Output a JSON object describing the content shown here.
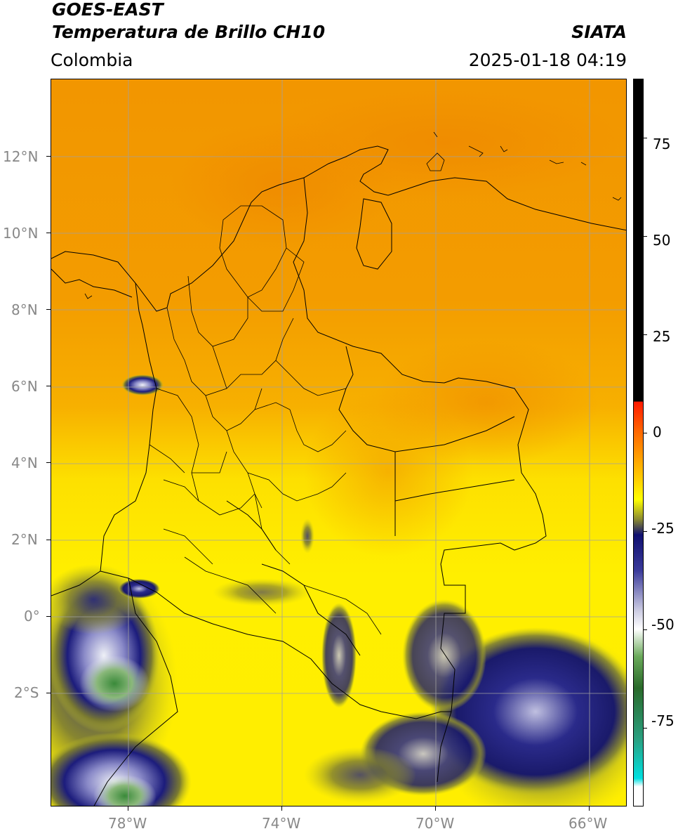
{
  "header": {
    "satellite": "GOES-EAST",
    "product": "Temperatura de Brillo CH10",
    "region": "Colombia",
    "source": "SIATA",
    "datetime": "2025-01-18 04:19"
  },
  "map": {
    "lat_labels": [
      "12°N",
      "10°N",
      "8°N",
      "6°N",
      "4°N",
      "2°N",
      "0°",
      "2°S"
    ],
    "lon_labels": [
      "78°W",
      "74°W",
      "70°W",
      "66°W"
    ],
    "colors": {
      "warm_orange": "#f29a00",
      "mid_orange": "#f7b400",
      "yellow": "#ffee00",
      "olive": "#9a9a2a",
      "navy": "#1a1a7a",
      "white_cloud": "#e6e6f0",
      "green_cloud": "#3f8a3a",
      "border_line": "#000000",
      "grid_line": "#a0a0a0"
    }
  },
  "colorbar": {
    "labels": [
      "75",
      "50",
      "25",
      "0",
      "-25",
      "-50",
      "-75"
    ],
    "range": [
      -95,
      90
    ],
    "stops": [
      {
        "value": 90,
        "color": "#000000"
      },
      {
        "value": 8,
        "color": "#000000"
      },
      {
        "value": 7.9,
        "color": "#ff1a00"
      },
      {
        "value": 0,
        "color": "#ff6a00"
      },
      {
        "value": -12,
        "color": "#ffd000"
      },
      {
        "value": -17,
        "color": "#ffff00"
      },
      {
        "value": -22,
        "color": "#8c8c30"
      },
      {
        "value": -26,
        "color": "#101070"
      },
      {
        "value": -35,
        "color": "#3a3a9a"
      },
      {
        "value": -45,
        "color": "#c8c8e0"
      },
      {
        "value": -50,
        "color": "#ffffff"
      },
      {
        "value": -57,
        "color": "#6aaa5a"
      },
      {
        "value": -65,
        "color": "#2a6a2a"
      },
      {
        "value": -78,
        "color": "#2aa080"
      },
      {
        "value": -88,
        "color": "#00e0e0"
      },
      {
        "value": -90.1,
        "color": "#ffffff"
      },
      {
        "value": -95,
        "color": "#ffffff"
      }
    ]
  }
}
